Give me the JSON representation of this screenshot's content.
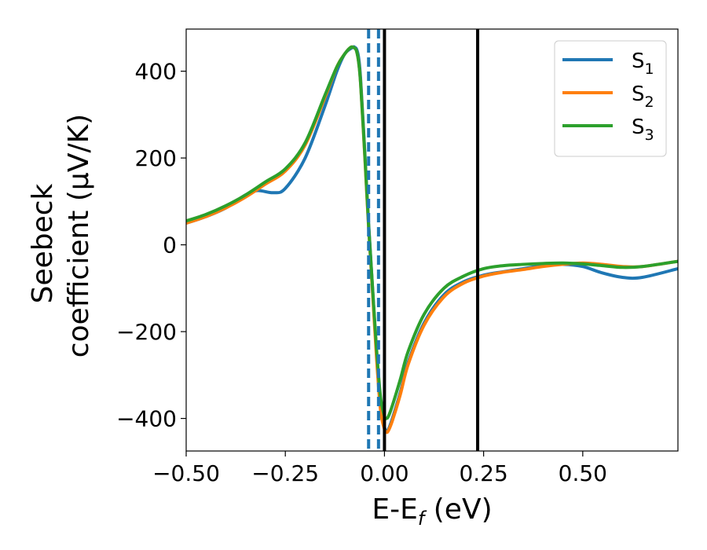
{
  "chart_data": {
    "type": "line",
    "title": "",
    "xlabel": {
      "main": "E-E",
      "sub": "f",
      "unit": " (eV)"
    },
    "ylabel": {
      "line1": "Seebeck",
      "line2": "coefficient  (μV/K)"
    },
    "xlim": [
      -0.5,
      0.74
    ],
    "ylim": [
      -475,
      497
    ],
    "xticks": [
      -0.5,
      -0.25,
      0.0,
      0.25,
      0.5
    ],
    "xtick_labels": [
      "−0.50",
      "−0.25",
      "0.00",
      "0.25",
      "0.50"
    ],
    "yticks": [
      -400,
      -200,
      0,
      200,
      400
    ],
    "ytick_labels": [
      "−400",
      "−200",
      "0",
      "200",
      "400"
    ],
    "grid": false,
    "legend_position": "top-right",
    "series": [
      {
        "name": "S",
        "sub": "1",
        "color": "#1f77b4",
        "x": [
          -0.5,
          -0.45,
          -0.4,
          -0.35,
          -0.32,
          -0.28,
          -0.25,
          -0.2,
          -0.15,
          -0.12,
          -0.1,
          -0.08,
          -0.075,
          -0.07,
          -0.065,
          -0.06,
          -0.05,
          -0.04,
          -0.03,
          -0.02,
          -0.01,
          0.0,
          0.005,
          0.01,
          0.02,
          0.04,
          0.06,
          0.1,
          0.15,
          0.2,
          0.25,
          0.3,
          0.35,
          0.4,
          0.45,
          0.5,
          0.55,
          0.6,
          0.65,
          0.74
        ],
        "y": [
          50,
          65,
          85,
          115,
          125,
          120,
          130,
          200,
          320,
          400,
          440,
          455,
          455,
          450,
          430,
          380,
          220,
          50,
          -100,
          -250,
          -370,
          -420,
          -428,
          -425,
          -400,
          -340,
          -270,
          -180,
          -115,
          -85,
          -70,
          -62,
          -55,
          -48,
          -45,
          -50,
          -65,
          -75,
          -75,
          -55
        ]
      },
      {
        "name": "S",
        "sub": "2",
        "color": "#ff7f0e",
        "x": [
          -0.5,
          -0.45,
          -0.4,
          -0.35,
          -0.3,
          -0.25,
          -0.2,
          -0.15,
          -0.12,
          -0.1,
          -0.085,
          -0.075,
          -0.07,
          -0.065,
          -0.06,
          -0.05,
          -0.04,
          -0.03,
          -0.02,
          -0.01,
          0.0,
          0.005,
          0.01,
          0.02,
          0.04,
          0.06,
          0.1,
          0.15,
          0.2,
          0.25,
          0.3,
          0.35,
          0.4,
          0.45,
          0.5,
          0.55,
          0.6,
          0.65,
          0.74
        ],
        "y": [
          50,
          65,
          85,
          110,
          140,
          170,
          230,
          340,
          410,
          440,
          455,
          453,
          445,
          420,
          370,
          210,
          40,
          -110,
          -260,
          -380,
          -425,
          -432,
          -428,
          -405,
          -345,
          -275,
          -185,
          -120,
          -88,
          -72,
          -63,
          -57,
          -50,
          -45,
          -42,
          -45,
          -50,
          -50,
          -38
        ]
      },
      {
        "name": "S",
        "sub": "3",
        "color": "#2ca02c",
        "x": [
          -0.5,
          -0.45,
          -0.4,
          -0.35,
          -0.3,
          -0.25,
          -0.2,
          -0.15,
          -0.12,
          -0.1,
          -0.085,
          -0.075,
          -0.07,
          -0.065,
          -0.06,
          -0.05,
          -0.04,
          -0.03,
          -0.02,
          -0.01,
          0.0,
          0.005,
          0.01,
          0.02,
          0.04,
          0.06,
          0.1,
          0.15,
          0.2,
          0.25,
          0.3,
          0.35,
          0.4,
          0.45,
          0.5,
          0.55,
          0.6,
          0.65,
          0.74
        ],
        "y": [
          55,
          70,
          90,
          115,
          145,
          175,
          235,
          345,
          410,
          440,
          455,
          453,
          445,
          420,
          370,
          215,
          45,
          -100,
          -240,
          -350,
          -395,
          -400,
          -395,
          -370,
          -310,
          -245,
          -160,
          -100,
          -72,
          -55,
          -48,
          -45,
          -43,
          -42,
          -44,
          -48,
          -52,
          -50,
          -38
        ]
      }
    ],
    "vlines": [
      {
        "x": -0.04,
        "style": "dashed",
        "color": "#1f77b4"
      },
      {
        "x": -0.015,
        "style": "dashed",
        "color": "#1f77b4"
      },
      {
        "x": 0.0,
        "style": "solid",
        "color": "#000000"
      },
      {
        "x": 0.235,
        "style": "solid",
        "color": "#000000"
      }
    ]
  }
}
